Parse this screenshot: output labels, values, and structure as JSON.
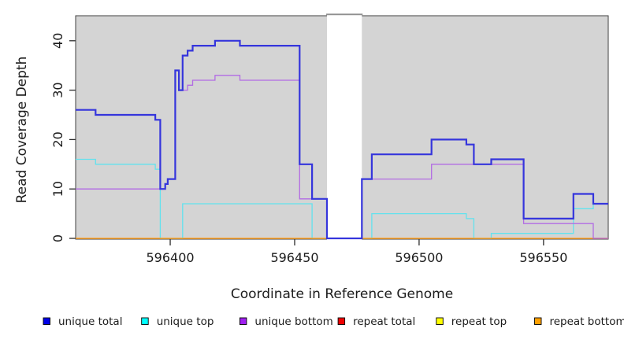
{
  "figure": {
    "background": "#ffffff"
  },
  "axes": {
    "x_title": "Coordinate in Reference Genome",
    "y_title": "Read Coverage Depth",
    "x_tick_labels": [
      "596400",
      "596450",
      "596500",
      "596550"
    ],
    "y_tick_labels": [
      "0",
      "10",
      "20",
      "30",
      "40"
    ]
  },
  "legend": {
    "items": [
      {
        "label": "unique total",
        "color": "#0000E8"
      },
      {
        "label": "unique top",
        "color": "#00FFFF"
      },
      {
        "label": "unique bottom",
        "color": "#A020F0"
      },
      {
        "label": "repeat total",
        "color": "#EE0000"
      },
      {
        "label": "repeat top",
        "color": "#FFFF00"
      },
      {
        "label": "repeat bottom",
        "color": "#FFA000"
      }
    ]
  },
  "chart_data": {
    "type": "line",
    "subtype": "step",
    "title": "",
    "xlabel": "Coordinate in Reference Genome",
    "ylabel": "Read Coverage Depth",
    "xlim": [
      596362,
      596576
    ],
    "ylim": [
      0,
      45
    ],
    "x_tick_values": [
      596400,
      596450,
      596500,
      596550
    ],
    "y_tick_values": [
      0,
      10,
      20,
      30,
      40
    ],
    "grid": false,
    "legend_position": "bottom",
    "plot_background": "#d4d4d4",
    "masked_region": {
      "x_start": 596463,
      "x_end": 596477,
      "color": "#ffffff"
    },
    "x_end": 596576,
    "series": [
      {
        "name": "unique total",
        "color": "#3535DC",
        "line_width": 2.2,
        "points": [
          [
            596362,
            26
          ],
          [
            596370,
            25
          ],
          [
            596394,
            24
          ],
          [
            596396,
            10
          ],
          [
            596398,
            11
          ],
          [
            596399,
            12
          ],
          [
            596402,
            34
          ],
          [
            596403.5,
            30
          ],
          [
            596405,
            37
          ],
          [
            596407,
            38
          ],
          [
            596409,
            39
          ],
          [
            596418,
            40
          ],
          [
            596428,
            39
          ],
          [
            596452,
            15
          ],
          [
            596457,
            8
          ],
          [
            596463,
            0
          ],
          [
            596477,
            12
          ],
          [
            596481,
            17
          ],
          [
            596505,
            20
          ],
          [
            596519,
            19
          ],
          [
            596522,
            15
          ],
          [
            596529,
            16
          ],
          [
            596542,
            4
          ],
          [
            596562,
            9
          ],
          [
            596570,
            7
          ]
        ]
      },
      {
        "name": "unique top",
        "color": "#62E2EE",
        "line_width": 1.3,
        "points": [
          [
            596362,
            16
          ],
          [
            596370,
            15
          ],
          [
            596394,
            14
          ],
          [
            596396,
            0
          ],
          [
            596405,
            7
          ],
          [
            596457,
            0
          ],
          [
            596481,
            5
          ],
          [
            596519,
            4
          ],
          [
            596522,
            0
          ],
          [
            596529,
            1
          ],
          [
            596562,
            6
          ],
          [
            596570,
            7
          ]
        ]
      },
      {
        "name": "unique bottom",
        "color": "#B26BE3",
        "line_width": 1.3,
        "points": [
          [
            596362,
            10
          ],
          [
            596398,
            11
          ],
          [
            596399,
            12
          ],
          [
            596402,
            34
          ],
          [
            596403.5,
            30
          ],
          [
            596407,
            31
          ],
          [
            596409,
            32
          ],
          [
            596418,
            33
          ],
          [
            596428,
            32
          ],
          [
            596452,
            8
          ],
          [
            596463,
            0
          ],
          [
            596477,
            12
          ],
          [
            596505,
            15
          ],
          [
            596542,
            3
          ],
          [
            596570,
            0
          ]
        ]
      },
      {
        "name": "repeat total",
        "color": "#EE0000",
        "line_width": 1.0,
        "points": [
          [
            596362,
            0
          ]
        ]
      },
      {
        "name": "repeat top",
        "color": "#FFFF00",
        "line_width": 1.0,
        "points": [
          [
            596362,
            0
          ]
        ]
      },
      {
        "name": "repeat bottom",
        "color": "#FFA020",
        "line_width": 1.6,
        "points": [
          [
            596362,
            0
          ]
        ]
      }
    ]
  }
}
